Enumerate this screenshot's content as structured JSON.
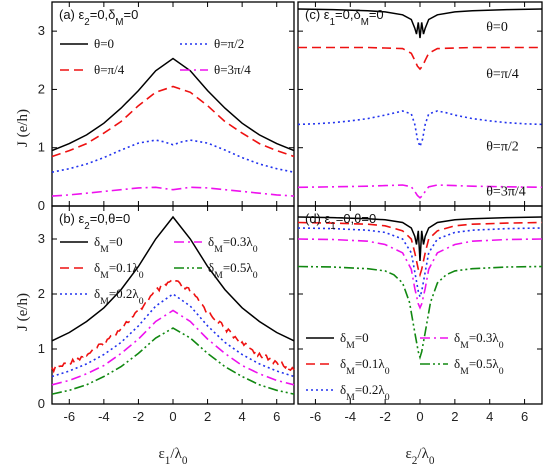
{
  "figure": {
    "xlabel_left": "ε1/λ0",
    "xlabel_right": "ε2/λ0",
    "ylabel_top": "J (e/h)",
    "ylabel_bottom": "J (e/h)"
  },
  "chart_data": [
    {
      "id": "a",
      "type": "line",
      "title": "(a) ε2=0,δM=0",
      "xlabel": "",
      "ylabel": "J (e/h)",
      "xlim": [
        -7,
        7
      ],
      "ylim": [
        0,
        3.5
      ],
      "xticks": [],
      "yticks": [
        "0",
        "1",
        "2",
        "3"
      ],
      "legend": "top",
      "series": [
        {
          "name": "θ=0",
          "color": "#000000",
          "dash": "solid",
          "x": [
            -7,
            -6,
            -5,
            -4,
            -3,
            -2,
            -1,
            0,
            1,
            2,
            3,
            4,
            5,
            6,
            7
          ],
          "y": [
            0.95,
            1.07,
            1.22,
            1.42,
            1.68,
            1.98,
            2.32,
            2.53,
            2.32,
            1.98,
            1.68,
            1.42,
            1.22,
            1.07,
            0.95
          ]
        },
        {
          "name": "θ=π/4",
          "color": "#ee1111",
          "dash": "dash",
          "x": [
            -7,
            -6,
            -5,
            -4,
            -3,
            -2,
            -1,
            0,
            1,
            2,
            3,
            4,
            5,
            6,
            7
          ],
          "y": [
            0.85,
            0.95,
            1.07,
            1.25,
            1.45,
            1.72,
            1.95,
            2.05,
            1.95,
            1.72,
            1.45,
            1.25,
            1.07,
            0.95,
            0.85
          ]
        },
        {
          "name": "θ=π/2",
          "color": "#2233ee",
          "dash": "dot",
          "x": [
            -7,
            -6,
            -5,
            -4,
            -3,
            -2,
            -1,
            -0.5,
            0,
            0.5,
            1,
            2,
            3,
            4,
            5,
            6,
            7
          ],
          "y": [
            0.58,
            0.64,
            0.72,
            0.83,
            0.96,
            1.08,
            1.13,
            1.1,
            1.05,
            1.1,
            1.13,
            1.08,
            0.96,
            0.83,
            0.72,
            0.64,
            0.58
          ]
        },
        {
          "name": "θ=3π/4",
          "color": "#ee11ee",
          "dash": "dashdot",
          "x": [
            -7,
            -6,
            -5,
            -4,
            -3,
            -2,
            -1,
            0,
            1,
            2,
            3,
            4,
            5,
            6,
            7
          ],
          "y": [
            0.17,
            0.19,
            0.22,
            0.25,
            0.28,
            0.31,
            0.32,
            0.28,
            0.32,
            0.31,
            0.28,
            0.25,
            0.22,
            0.19,
            0.17
          ]
        }
      ]
    },
    {
      "id": "b",
      "type": "line",
      "title": "(b) ε2=0,θ=0",
      "xlabel": "ε1/λ0",
      "ylabel": "J (e/h)",
      "xlim": [
        -7,
        7
      ],
      "ylim": [
        0,
        3.6
      ],
      "xticks": [
        "-6",
        "-4",
        "-2",
        "0",
        "2",
        "4",
        "6"
      ],
      "yticks": [
        "0",
        "1",
        "2",
        "3"
      ],
      "legend": "top",
      "series": [
        {
          "name": "δM=0",
          "color": "#000000",
          "dash": "solid",
          "x": [
            -7,
            -6,
            -5,
            -4,
            -3,
            -2,
            -1,
            0,
            1,
            2,
            3,
            4,
            5,
            6,
            7
          ],
          "y": [
            1.15,
            1.3,
            1.5,
            1.75,
            2.08,
            2.5,
            3.0,
            3.4,
            3.0,
            2.5,
            2.08,
            1.75,
            1.5,
            1.3,
            1.15
          ]
        },
        {
          "name": "δM=0.1λ0",
          "color": "#ee1111",
          "dash": "dash",
          "noisy": true,
          "x": [
            -7,
            -6,
            -5,
            -4,
            -3,
            -2,
            -1,
            0,
            1,
            2,
            3,
            4,
            5,
            6,
            7
          ],
          "y": [
            0.62,
            0.75,
            0.9,
            1.1,
            1.38,
            1.68,
            2.05,
            2.25,
            2.05,
            1.68,
            1.38,
            1.1,
            0.9,
            0.75,
            0.62
          ]
        },
        {
          "name": "δM=0.2λ0",
          "color": "#2233ee",
          "dash": "dot",
          "x": [
            -7,
            -6,
            -5,
            -4,
            -3,
            -2,
            -1,
            0,
            1,
            2,
            3,
            4,
            5,
            6,
            7
          ],
          "y": [
            0.5,
            0.6,
            0.73,
            0.9,
            1.12,
            1.42,
            1.78,
            2.0,
            1.78,
            1.42,
            1.12,
            0.9,
            0.73,
            0.6,
            0.5
          ]
        },
        {
          "name": "δM=0.3λ0",
          "color": "#ee11ee",
          "dash": "dashdot",
          "x": [
            -7,
            -6,
            -5,
            -4,
            -3,
            -2,
            -1,
            0,
            1,
            2,
            3,
            4,
            5,
            6,
            7
          ],
          "y": [
            0.35,
            0.43,
            0.55,
            0.7,
            0.92,
            1.18,
            1.5,
            1.7,
            1.5,
            1.18,
            0.92,
            0.7,
            0.55,
            0.43,
            0.35
          ]
        },
        {
          "name": "δM=0.5λ0",
          "color": "#118811",
          "dash": "dashdotdot",
          "x": [
            -7,
            -6,
            -5,
            -4,
            -3,
            -2,
            -1,
            0,
            1,
            2,
            3,
            4,
            5,
            6,
            7
          ],
          "y": [
            0.18,
            0.25,
            0.35,
            0.5,
            0.68,
            0.92,
            1.2,
            1.38,
            1.2,
            0.92,
            0.68,
            0.5,
            0.35,
            0.25,
            0.18
          ]
        }
      ]
    },
    {
      "id": "c",
      "type": "line",
      "title": "(c) ε1=0,δM=0",
      "xlabel": "",
      "ylabel": "",
      "xlim": [
        -7,
        7
      ],
      "ylim": [
        0,
        3.5
      ],
      "xticks": [],
      "yticks": [],
      "legend": "inline",
      "annotations": [
        {
          "text": "θ=0",
          "x": 3.8,
          "y": 3.0
        },
        {
          "text": "θ=π/4",
          "x": 3.8,
          "y": 2.2
        },
        {
          "text": "θ=π/2",
          "x": 3.8,
          "y": 0.95
        },
        {
          "text": "θ=3π/4",
          "x": 3.8,
          "y": 0.18
        }
      ],
      "series": [
        {
          "name": "θ=0",
          "color": "#000000",
          "dash": "solid",
          "x": [
            -7,
            -5,
            -3,
            -2,
            -1,
            -0.5,
            -0.3,
            -0.2,
            -0.1,
            0,
            0.1,
            0.2,
            0.3,
            0.5,
            1,
            2,
            3,
            5,
            7
          ],
          "y": [
            3.38,
            3.37,
            3.35,
            3.33,
            3.28,
            3.2,
            3.05,
            2.95,
            3.15,
            2.88,
            3.15,
            2.95,
            3.05,
            3.2,
            3.28,
            3.33,
            3.35,
            3.37,
            3.38
          ]
        },
        {
          "name": "θ=π/4",
          "color": "#ee1111",
          "dash": "dash",
          "x": [
            -7,
            -5,
            -3,
            -2,
            -1,
            -0.5,
            -0.3,
            -0.15,
            0,
            0.15,
            0.3,
            0.5,
            1,
            2,
            3,
            5,
            7
          ],
          "y": [
            2.72,
            2.72,
            2.72,
            2.71,
            2.7,
            2.62,
            2.5,
            2.4,
            2.35,
            2.4,
            2.5,
            2.62,
            2.7,
            2.71,
            2.72,
            2.72,
            2.72
          ]
        },
        {
          "name": "θ=π/2",
          "color": "#2233ee",
          "dash": "dot",
          "x": [
            -7,
            -6,
            -5,
            -4,
            -3,
            -2,
            -1,
            -0.5,
            -0.3,
            -0.15,
            0,
            0.15,
            0.3,
            0.5,
            1,
            1.5,
            2,
            3,
            4,
            5,
            6,
            7
          ],
          "y": [
            1.4,
            1.41,
            1.43,
            1.46,
            1.5,
            1.56,
            1.63,
            1.58,
            1.4,
            1.15,
            1.02,
            1.15,
            1.4,
            1.58,
            1.63,
            1.6,
            1.56,
            1.5,
            1.46,
            1.43,
            1.41,
            1.4
          ]
        },
        {
          "name": "θ=3π/4",
          "color": "#ee11ee",
          "dash": "dashdot",
          "x": [
            -7,
            -5,
            -3,
            -2,
            -1,
            -0.5,
            -0.3,
            -0.15,
            0,
            0.15,
            0.3,
            0.5,
            1,
            2,
            3,
            5,
            7
          ],
          "y": [
            0.32,
            0.33,
            0.34,
            0.35,
            0.36,
            0.33,
            0.25,
            0.18,
            0.14,
            0.18,
            0.25,
            0.33,
            0.36,
            0.35,
            0.34,
            0.33,
            0.32
          ]
        }
      ]
    },
    {
      "id": "d",
      "type": "line",
      "title": "(d) ε1=0,θ=0",
      "xlabel": "ε2/λ0",
      "ylabel": "",
      "xlim": [
        -7,
        7
      ],
      "ylim": [
        0,
        3.6
      ],
      "xticks": [
        "-6",
        "-4",
        "-2",
        "0",
        "2",
        "4",
        "6"
      ],
      "yticks": [],
      "legend": "bottom",
      "series": [
        {
          "name": "δM=0",
          "color": "#000000",
          "dash": "solid",
          "x": [
            -7,
            -5,
            -3,
            -2,
            -1,
            -0.5,
            -0.3,
            -0.2,
            -0.1,
            0,
            0.1,
            0.2,
            0.3,
            0.5,
            1,
            2,
            3,
            5,
            7
          ],
          "y": [
            3.4,
            3.39,
            3.37,
            3.35,
            3.3,
            3.2,
            3.05,
            2.9,
            3.15,
            2.6,
            3.15,
            2.9,
            3.05,
            3.2,
            3.3,
            3.35,
            3.37,
            3.39,
            3.4
          ]
        },
        {
          "name": "δM=0.1λ0",
          "color": "#ee1111",
          "dash": "dash",
          "x": [
            -7,
            -5,
            -3,
            -2,
            -1,
            -0.5,
            -0.3,
            -0.1,
            0,
            0.1,
            0.3,
            0.5,
            1,
            2,
            3,
            5,
            7
          ],
          "y": [
            3.3,
            3.29,
            3.27,
            3.24,
            3.15,
            3.0,
            2.75,
            2.45,
            2.35,
            2.45,
            2.75,
            3.0,
            3.15,
            3.24,
            3.27,
            3.29,
            3.3
          ]
        },
        {
          "name": "δM=0.2λ0",
          "color": "#2233ee",
          "dash": "dot",
          "x": [
            -7,
            -5,
            -3,
            -2,
            -1,
            -0.5,
            -0.3,
            -0.1,
            0,
            0.1,
            0.3,
            0.5,
            1,
            2,
            3,
            5,
            7
          ],
          "y": [
            3.2,
            3.19,
            3.16,
            3.12,
            3.0,
            2.75,
            2.4,
            2.05,
            1.95,
            2.05,
            2.4,
            2.75,
            3.0,
            3.12,
            3.16,
            3.19,
            3.2
          ]
        },
        {
          "name": "δM=0.3λ0",
          "color": "#ee11ee",
          "dash": "dashdot",
          "x": [
            -7,
            -5,
            -3,
            -2,
            -1,
            -0.5,
            -0.3,
            -0.1,
            0,
            0.1,
            0.3,
            0.5,
            1,
            2,
            3,
            5,
            7
          ],
          "y": [
            3.0,
            2.99,
            2.96,
            2.9,
            2.75,
            2.45,
            2.1,
            1.82,
            1.75,
            1.82,
            2.1,
            2.45,
            2.75,
            2.9,
            2.96,
            2.99,
            3.0
          ]
        },
        {
          "name": "δM=0.5λ0",
          "color": "#118811",
          "dash": "dashdotdot",
          "x": [
            -7,
            -5,
            -3,
            -2,
            -1.5,
            -1,
            -0.6,
            -0.3,
            -0.1,
            0,
            0.1,
            0.3,
            0.6,
            1,
            1.5,
            2,
            3,
            5,
            7
          ],
          "y": [
            2.5,
            2.49,
            2.46,
            2.42,
            2.35,
            2.2,
            1.85,
            1.3,
            0.95,
            0.85,
            0.95,
            1.3,
            1.85,
            2.2,
            2.35,
            2.42,
            2.46,
            2.49,
            2.5
          ]
        }
      ]
    }
  ]
}
